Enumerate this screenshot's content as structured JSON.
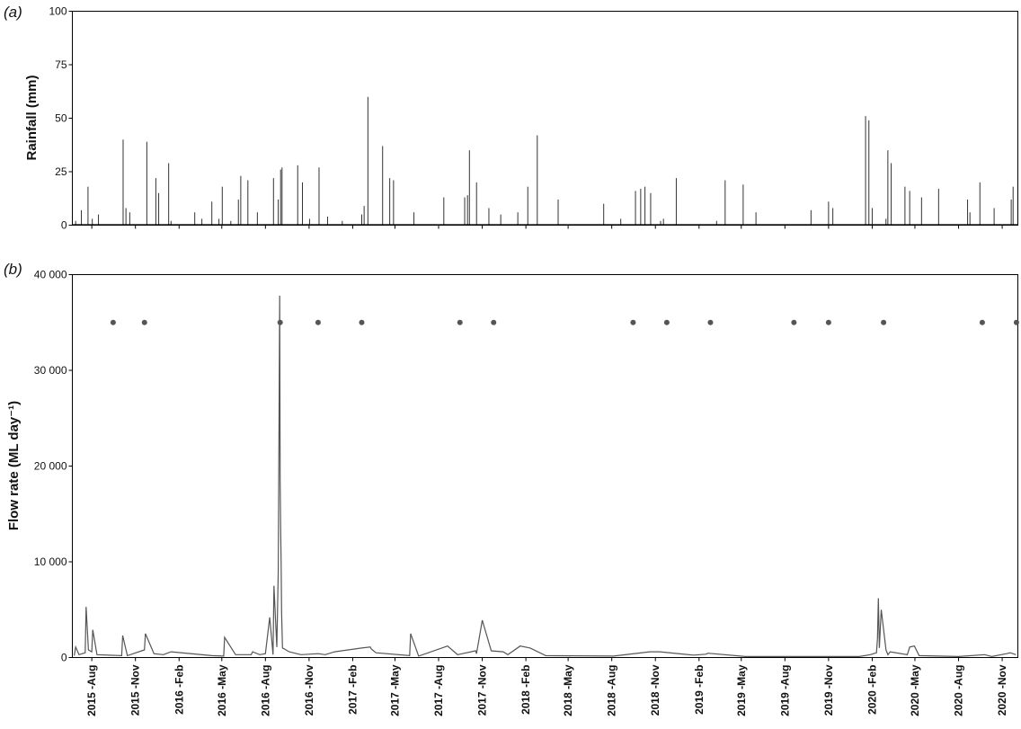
{
  "chart_data": [
    {
      "panel": "(a)",
      "type": "bar",
      "ylabel": "Rainfall (mm)",
      "ylim": [
        0,
        100
      ],
      "yticks": [
        0,
        25,
        50,
        75,
        100
      ],
      "ytick_labels": [
        "0",
        "25",
        "50",
        "75",
        "100"
      ],
      "x": [
        "2015-06-28",
        "2015-07-10",
        "2015-07-24",
        "2015-08-02",
        "2015-08-15",
        "2015-10-06",
        "2015-10-12",
        "2015-10-20",
        "2015-11-25",
        "2015-12-14",
        "2015-12-20",
        "2016-01-10",
        "2016-01-15",
        "2016-03-05",
        "2016-03-20",
        "2016-04-10",
        "2016-04-25",
        "2016-05-02",
        "2016-05-20",
        "2016-06-05",
        "2016-06-10",
        "2016-06-25",
        "2016-07-15",
        "2016-08-18",
        "2016-08-28",
        "2016-09-02",
        "2016-09-05",
        "2016-10-08",
        "2016-10-18",
        "2016-11-02",
        "2016-11-22",
        "2016-12-10",
        "2017-01-10",
        "2017-02-20",
        "2017-02-25",
        "2017-03-05",
        "2017-04-05",
        "2017-04-20",
        "2017-04-28",
        "2017-06-10",
        "2017-08-12",
        "2017-09-25",
        "2017-10-01",
        "2017-10-05",
        "2017-10-20",
        "2017-11-15",
        "2017-12-10",
        "2018-01-15",
        "2018-02-05",
        "2018-02-25",
        "2018-04-10",
        "2018-07-15",
        "2018-08-20",
        "2018-09-20",
        "2018-10-01",
        "2018-10-10",
        "2018-10-22",
        "2018-11-12",
        "2018-11-18",
        "2018-12-15",
        "2019-03-10",
        "2019-03-28",
        "2019-05-05",
        "2019-06-01",
        "2019-09-25",
        "2019-11-01",
        "2019-11-10",
        "2020-01-18",
        "2020-01-25",
        "2020-02-01",
        "2020-03-01",
        "2020-03-05",
        "2020-03-12",
        "2020-04-10",
        "2020-04-20",
        "2020-05-15",
        "2020-06-20",
        "2020-08-20",
        "2020-08-25",
        "2020-09-15",
        "2020-10-15",
        "2020-11-20",
        "2020-11-24"
      ],
      "values": [
        2,
        7,
        18,
        3,
        5,
        40,
        8,
        6,
        39,
        22,
        15,
        29,
        2,
        6,
        3,
        11,
        3,
        18,
        2,
        12,
        23,
        21,
        6,
        22,
        12,
        26,
        27,
        28,
        20,
        3,
        27,
        4,
        2,
        5,
        9,
        60,
        37,
        22,
        21,
        6,
        13,
        13,
        14,
        35,
        20,
        8,
        5,
        6,
        18,
        42,
        12,
        10,
        3,
        16,
        17,
        18,
        15,
        2,
        3,
        22,
        2,
        21,
        19,
        6,
        7,
        11,
        8,
        51,
        49,
        8,
        3,
        35,
        29,
        18,
        16,
        13,
        17,
        12,
        6,
        20,
        8,
        12,
        18
      ]
    },
    {
      "panel": "(b)",
      "type": "line",
      "ylabel": "Flow rate (ML day⁻¹)",
      "ylim": [
        0,
        40000
      ],
      "yticks": [
        0,
        10000,
        20000,
        30000,
        40000
      ],
      "ytick_labels": [
        "0",
        "10 000",
        "20 000",
        "30 000",
        "40 000"
      ],
      "x_ticks": [
        "2015 -Aug",
        "2015 -Nov",
        "2016 -Feb",
        "2016 -May",
        "2016 -Aug",
        "2016 -Nov",
        "2017 -Feb",
        "2017 -May",
        "2017 -Aug",
        "2017 -Nov",
        "2018 -Feb",
        "2018 -May",
        "2018 -Aug",
        "2018 -Nov",
        "2019 -Feb",
        "2019 -May",
        "2019 -Aug",
        "2019 -Nov",
        "2020 -Feb",
        "2020 -May",
        "2020 -Aug",
        "2020 -Nov"
      ],
      "x": [
        "2015-06-25",
        "2015-06-28",
        "2015-07-05",
        "2015-07-18",
        "2015-07-20",
        "2015-07-25",
        "2015-08-01",
        "2015-08-03",
        "2015-08-12",
        "2015-10-03",
        "2015-10-05",
        "2015-10-15",
        "2015-11-20",
        "2015-11-22",
        "2015-12-10",
        "2015-12-30",
        "2016-01-15",
        "2016-04-10",
        "2016-05-05",
        "2016-05-07",
        "2016-05-30",
        "2016-07-02",
        "2016-07-05",
        "2016-07-20",
        "2016-08-01",
        "2016-08-10",
        "2016-08-17",
        "2016-08-19",
        "2016-08-25",
        "2016-08-28",
        "2016-08-31",
        "2016-09-01",
        "2016-09-02",
        "2016-09-03",
        "2016-09-04",
        "2016-09-06",
        "2016-09-10",
        "2016-09-20",
        "2016-10-15",
        "2016-11-20",
        "2016-12-05",
        "2016-12-25",
        "2017-02-20",
        "2017-03-10",
        "2017-03-12",
        "2017-03-22",
        "2017-06-01",
        "2017-06-03",
        "2017-06-20",
        "2017-08-20",
        "2017-09-10",
        "2017-09-20",
        "2017-10-18",
        "2017-10-20",
        "2017-11-01",
        "2017-11-20",
        "2017-12-15",
        "2017-12-25",
        "2018-01-20",
        "2018-02-10",
        "2018-03-15",
        "2018-08-05",
        "2018-10-20",
        "2018-11-10",
        "2019-01-20",
        "2019-02-15",
        "2019-02-20",
        "2019-05-10",
        "2019-07-15",
        "2019-09-20",
        "2020-01-05",
        "2020-01-28",
        "2020-02-10",
        "2020-02-12",
        "2020-02-14",
        "2020-02-16",
        "2020-02-20",
        "2020-03-01",
        "2020-03-05",
        "2020-03-10",
        "2020-04-15",
        "2020-04-20",
        "2020-04-30",
        "2020-05-10",
        "2020-08-01",
        "2020-09-25",
        "2020-10-10",
        "2020-11-10",
        "2020-11-18",
        "2020-11-30"
      ],
      "values": [
        200,
        1100,
        300,
        500,
        5300,
        800,
        600,
        2900,
        300,
        200,
        2300,
        200,
        800,
        2500,
        400,
        300,
        600,
        200,
        150,
        2100,
        300,
        300,
        600,
        300,
        400,
        4200,
        300,
        7500,
        1100,
        9000,
        37800,
        18500,
        14000,
        9800,
        4800,
        1000,
        900,
        600,
        300,
        400,
        300,
        600,
        1000,
        1100,
        900,
        500,
        200,
        2500,
        150,
        1200,
        300,
        400,
        700,
        400,
        3900,
        700,
        600,
        300,
        1200,
        1000,
        200,
        150,
        600,
        600,
        250,
        350,
        450,
        100,
        100,
        100,
        100,
        300,
        500,
        2000,
        6200,
        1000,
        5000,
        800,
        300,
        600,
        300,
        1100,
        1200,
        200,
        100,
        300,
        100,
        400,
        500,
        300
      ],
      "event_markers": {
        "y": 35000,
        "x": [
          "2015-09-15",
          "2015-11-20",
          "2016-09-01",
          "2016-11-20",
          "2017-02-20",
          "2017-09-15",
          "2017-11-25",
          "2018-09-15",
          "2018-11-25",
          "2019-02-25",
          "2019-08-20",
          "2019-11-01",
          "2020-02-25",
          "2020-09-20",
          "2020-12-01"
        ]
      }
    }
  ]
}
